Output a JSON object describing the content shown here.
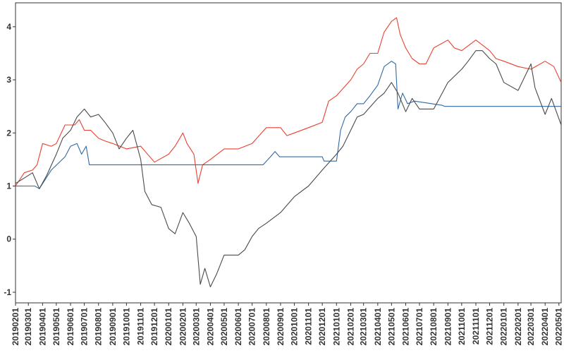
{
  "chart_data": {
    "type": "line",
    "title": "",
    "xlabel": "",
    "ylabel": "",
    "ylim": [
      -1.2,
      4.45
    ],
    "yticks": [
      -1,
      0,
      1,
      2,
      3,
      4
    ],
    "xlim": [
      "2019-02-01",
      "2022-05-06"
    ],
    "grid": false,
    "legend": "none",
    "xticks": [
      "20190201",
      "20190301",
      "20190401",
      "20190501",
      "20190601",
      "20190701",
      "20190801",
      "20190901",
      "20191001",
      "20191101",
      "20191201",
      "20200101",
      "20200201",
      "20200301",
      "20200401",
      "20200501",
      "20200601",
      "20200701",
      "20200801",
      "20200901",
      "20201001",
      "20201101",
      "20201201",
      "20210101",
      "20210201",
      "20210301",
      "20210401",
      "20210501",
      "20210601",
      "20210701",
      "20210801",
      "20210901",
      "20211001",
      "20211101",
      "20211201",
      "20220101",
      "20220201",
      "20220301",
      "20220401",
      "20220501"
    ],
    "series": [
      {
        "color": "#e8412f",
        "points": [
          [
            "2019-02-01",
            1.0
          ],
          [
            "2019-02-20",
            1.25
          ],
          [
            "2019-03-10",
            1.3
          ],
          [
            "2019-03-20",
            1.4
          ],
          [
            "2019-04-01",
            1.8
          ],
          [
            "2019-04-20",
            1.75
          ],
          [
            "2019-05-01",
            1.8
          ],
          [
            "2019-05-20",
            2.15
          ],
          [
            "2019-06-10",
            2.15
          ],
          [
            "2019-06-20",
            2.25
          ],
          [
            "2019-07-01",
            2.05
          ],
          [
            "2019-07-15",
            2.05
          ],
          [
            "2019-08-01",
            1.9
          ],
          [
            "2019-08-15",
            1.85
          ],
          [
            "2019-09-01",
            1.8
          ],
          [
            "2019-10-01",
            1.7
          ],
          [
            "2019-11-01",
            1.75
          ],
          [
            "2019-12-01",
            1.45
          ],
          [
            "2020-01-01",
            1.6
          ],
          [
            "2020-01-15",
            1.75
          ],
          [
            "2020-02-01",
            2.0
          ],
          [
            "2020-02-10",
            1.8
          ],
          [
            "2020-02-25",
            1.6
          ],
          [
            "2020-03-05",
            1.05
          ],
          [
            "2020-03-15",
            1.4
          ],
          [
            "2020-04-01",
            1.5
          ],
          [
            "2020-05-01",
            1.7
          ],
          [
            "2020-06-01",
            1.7
          ],
          [
            "2020-07-01",
            1.8
          ],
          [
            "2020-08-01",
            2.1
          ],
          [
            "2020-09-01",
            2.1
          ],
          [
            "2020-09-15",
            1.95
          ],
          [
            "2020-10-01",
            2.0
          ],
          [
            "2020-11-01",
            2.1
          ],
          [
            "2020-12-01",
            2.2
          ],
          [
            "2020-12-15",
            2.6
          ],
          [
            "2021-01-01",
            2.7
          ],
          [
            "2021-02-01",
            3.0
          ],
          [
            "2021-02-15",
            3.2
          ],
          [
            "2021-03-01",
            3.3
          ],
          [
            "2021-03-15",
            3.5
          ],
          [
            "2021-04-01",
            3.5
          ],
          [
            "2021-04-15",
            3.9
          ],
          [
            "2021-05-01",
            4.1
          ],
          [
            "2021-05-12",
            4.17
          ],
          [
            "2021-05-20",
            3.85
          ],
          [
            "2021-06-01",
            3.6
          ],
          [
            "2021-06-15",
            3.4
          ],
          [
            "2021-07-01",
            3.3
          ],
          [
            "2021-07-15",
            3.3
          ],
          [
            "2021-08-01",
            3.6
          ],
          [
            "2021-09-01",
            3.75
          ],
          [
            "2021-09-15",
            3.6
          ],
          [
            "2021-10-01",
            3.55
          ],
          [
            "2021-11-01",
            3.75
          ],
          [
            "2021-12-01",
            3.55
          ],
          [
            "2021-12-15",
            3.4
          ],
          [
            "2022-01-01",
            3.35
          ],
          [
            "2022-02-01",
            3.25
          ],
          [
            "2022-03-01",
            3.2
          ],
          [
            "2022-04-01",
            3.35
          ],
          [
            "2022-04-20",
            3.25
          ],
          [
            "2022-05-06",
            2.95
          ]
        ]
      },
      {
        "color": "#2f6aa6",
        "points": [
          [
            "2019-02-01",
            1.0
          ],
          [
            "2019-03-15",
            1.0
          ],
          [
            "2019-03-25",
            0.95
          ],
          [
            "2019-04-20",
            1.3
          ],
          [
            "2019-05-20",
            1.55
          ],
          [
            "2019-06-01",
            1.75
          ],
          [
            "2019-06-15",
            1.8
          ],
          [
            "2019-06-25",
            1.6
          ],
          [
            "2019-07-05",
            1.75
          ],
          [
            "2019-07-12",
            1.4
          ],
          [
            "2020-07-25",
            1.4
          ],
          [
            "2020-08-10",
            1.55
          ],
          [
            "2020-08-20",
            1.65
          ],
          [
            "2020-08-30",
            1.55
          ],
          [
            "2020-12-01",
            1.55
          ],
          [
            "2020-12-05",
            1.47
          ],
          [
            "2021-01-01",
            1.47
          ],
          [
            "2021-01-10",
            2.05
          ],
          [
            "2021-01-20",
            2.3
          ],
          [
            "2021-02-01",
            2.4
          ],
          [
            "2021-02-15",
            2.55
          ],
          [
            "2021-03-01",
            2.55
          ],
          [
            "2021-03-15",
            2.7
          ],
          [
            "2021-04-01",
            2.9
          ],
          [
            "2021-04-15",
            3.25
          ],
          [
            "2021-05-01",
            3.35
          ],
          [
            "2021-05-10",
            3.3
          ],
          [
            "2021-05-15",
            2.45
          ],
          [
            "2021-05-25",
            2.75
          ],
          [
            "2021-06-05",
            2.55
          ],
          [
            "2021-06-20",
            2.6
          ],
          [
            "2021-08-20",
            2.52
          ],
          [
            "2021-08-25",
            2.5
          ],
          [
            "2022-05-06",
            2.5
          ]
        ]
      },
      {
        "color": "#4a4a4a",
        "points": [
          [
            "2019-02-01",
            1.05
          ],
          [
            "2019-02-20",
            1.15
          ],
          [
            "2019-03-10",
            1.25
          ],
          [
            "2019-03-25",
            0.95
          ],
          [
            "2019-04-10",
            1.2
          ],
          [
            "2019-05-01",
            1.6
          ],
          [
            "2019-05-15",
            1.9
          ],
          [
            "2019-06-01",
            2.05
          ],
          [
            "2019-06-15",
            2.3
          ],
          [
            "2019-07-01",
            2.45
          ],
          [
            "2019-07-15",
            2.3
          ],
          [
            "2019-08-01",
            2.35
          ],
          [
            "2019-08-15",
            2.2
          ],
          [
            "2019-09-01",
            2.0
          ],
          [
            "2019-09-15",
            1.7
          ],
          [
            "2019-10-01",
            1.9
          ],
          [
            "2019-10-15",
            2.05
          ],
          [
            "2019-11-01",
            1.5
          ],
          [
            "2019-11-10",
            0.9
          ],
          [
            "2019-11-25",
            0.65
          ],
          [
            "2019-12-15",
            0.6
          ],
          [
            "2020-01-01",
            0.2
          ],
          [
            "2020-01-15",
            0.1
          ],
          [
            "2020-02-01",
            0.5
          ],
          [
            "2020-02-15",
            0.3
          ],
          [
            "2020-03-01",
            0.05
          ],
          [
            "2020-03-10",
            -0.85
          ],
          [
            "2020-03-20",
            -0.55
          ],
          [
            "2020-04-01",
            -0.9
          ],
          [
            "2020-04-15",
            -0.65
          ],
          [
            "2020-05-01",
            -0.3
          ],
          [
            "2020-06-01",
            -0.3
          ],
          [
            "2020-06-15",
            -0.2
          ],
          [
            "2020-07-01",
            0.05
          ],
          [
            "2020-07-15",
            0.2
          ],
          [
            "2020-08-01",
            0.3
          ],
          [
            "2020-09-01",
            0.5
          ],
          [
            "2020-10-01",
            0.8
          ],
          [
            "2020-11-01",
            1.0
          ],
          [
            "2020-12-01",
            1.3
          ],
          [
            "2021-01-01",
            1.6
          ],
          [
            "2021-01-15",
            1.75
          ],
          [
            "2021-02-01",
            2.05
          ],
          [
            "2021-02-15",
            2.3
          ],
          [
            "2021-03-01",
            2.35
          ],
          [
            "2021-04-01",
            2.65
          ],
          [
            "2021-04-15",
            2.75
          ],
          [
            "2021-05-01",
            2.95
          ],
          [
            "2021-05-15",
            2.75
          ],
          [
            "2021-06-01",
            2.4
          ],
          [
            "2021-06-15",
            2.65
          ],
          [
            "2021-07-01",
            2.45
          ],
          [
            "2021-08-01",
            2.45
          ],
          [
            "2021-09-01",
            2.95
          ],
          [
            "2021-10-01",
            3.2
          ],
          [
            "2021-10-15",
            3.35
          ],
          [
            "2021-11-01",
            3.55
          ],
          [
            "2021-11-15",
            3.55
          ],
          [
            "2021-12-01",
            3.4
          ],
          [
            "2021-12-15",
            3.3
          ],
          [
            "2022-01-01",
            2.95
          ],
          [
            "2022-02-01",
            2.8
          ],
          [
            "2022-03-01",
            3.3
          ],
          [
            "2022-03-10",
            2.85
          ],
          [
            "2022-04-01",
            2.35
          ],
          [
            "2022-04-15",
            2.65
          ],
          [
            "2022-05-06",
            2.15
          ]
        ]
      }
    ]
  }
}
